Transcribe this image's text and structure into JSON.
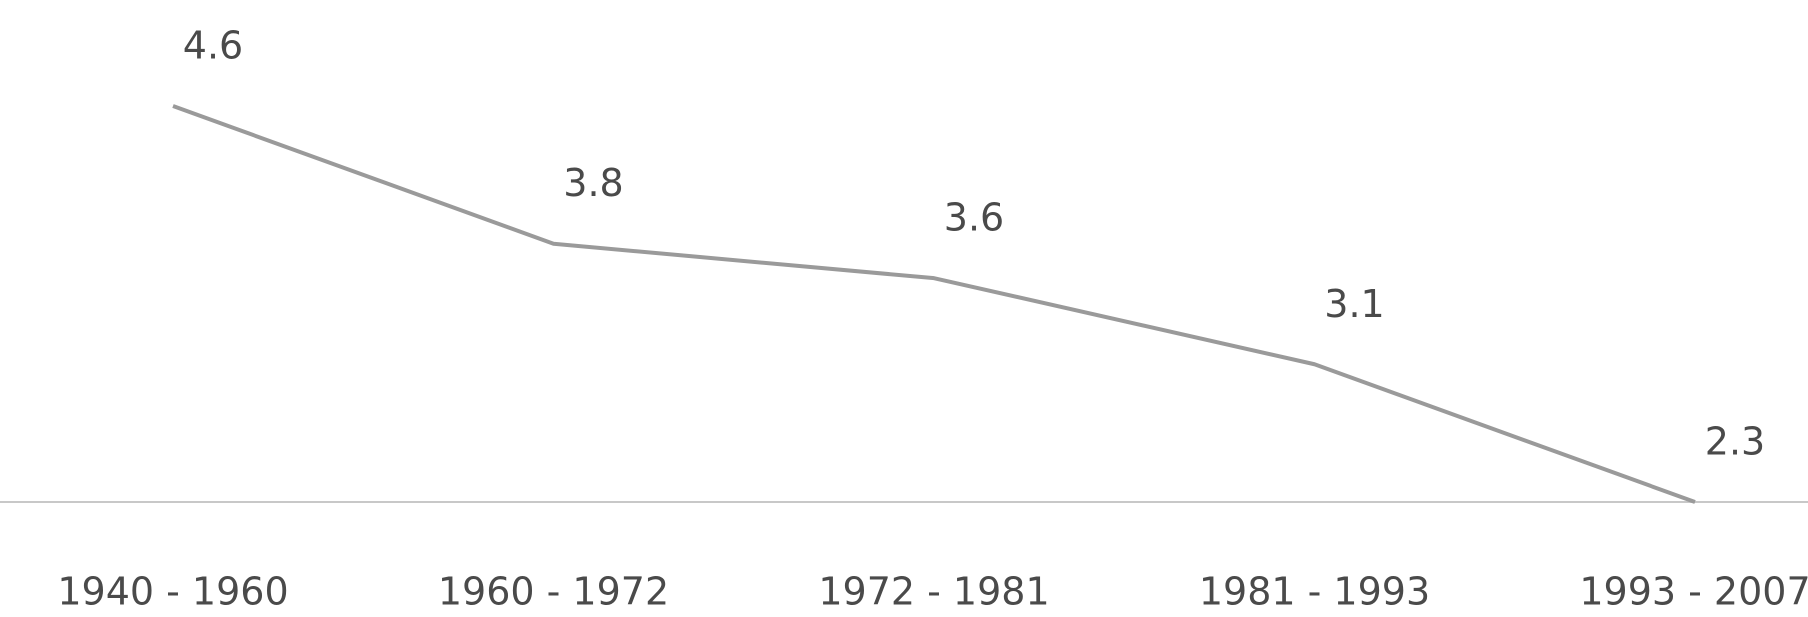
{
  "chart_data": {
    "type": "line",
    "categories": [
      "1940 - 1960",
      "1960 - 1972",
      "1972 - 1981",
      "1981 - 1993",
      "1993 - 2007"
    ],
    "series": [
      {
        "name": null,
        "color": "#9a9a9a",
        "values": [
          4.6,
          3.8,
          3.6,
          3.1,
          2.3
        ]
      }
    ],
    "ylim": [
      2.3,
      4.6
    ]
  }
}
